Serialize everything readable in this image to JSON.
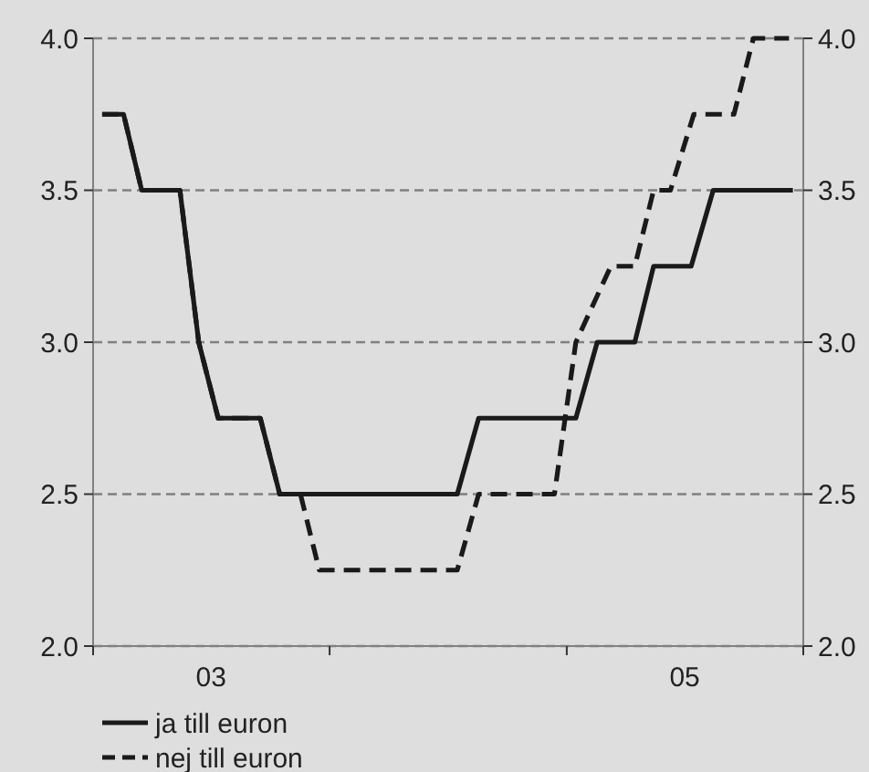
{
  "chart_data": {
    "type": "line",
    "xlim": [
      "2003-01-01",
      "2006-01-01"
    ],
    "xticks": [
      {
        "value": "2003-01-01",
        "label": null
      },
      {
        "value": "2003-07-02",
        "label": "03"
      },
      {
        "value": "2004-01-01",
        "label": null
      },
      {
        "value": "2005-01-01",
        "label": null
      },
      {
        "value": "2005-07-02",
        "label": "05"
      },
      {
        "value": "2006-01-01",
        "label": null
      }
    ],
    "ylim": [
      2.0,
      4.0
    ],
    "yticks": [
      {
        "value": 2.0,
        "label": "2.0"
      },
      {
        "value": 2.5,
        "label": "2.5"
      },
      {
        "value": 3.0,
        "label": "3.0"
      },
      {
        "value": 3.5,
        "label": "3.5"
      },
      {
        "value": 4.0,
        "label": "4.0"
      }
    ],
    "y2lim": [
      2.0,
      4.0
    ],
    "y2ticks": [
      {
        "value": 2.0,
        "label": "2.0"
      },
      {
        "value": 2.5,
        "label": "2.5"
      },
      {
        "value": 3.0,
        "label": "3.0"
      },
      {
        "value": 3.5,
        "label": "3.5"
      },
      {
        "value": 4.0,
        "label": "4.0"
      }
    ],
    "grid": "y",
    "legend": "bottom left",
    "marker": "none",
    "series": [
      {
        "name": "ja till euron",
        "color": "#1a1a1a",
        "line_style": "solid",
        "x": [
          "2003-01-15",
          "2003-02-17",
          "2003-03-17",
          "2003-05-15",
          "2003-06-13",
          "2003-07-13",
          "2003-09-16",
          "2003-10-16",
          "2004-07-16",
          "2004-08-18",
          "2005-01-15",
          "2005-02-17",
          "2005-04-16",
          "2005-05-15",
          "2005-07-12",
          "2005-08-15",
          "2005-12-16"
        ],
        "values": [
          3.75,
          3.75,
          3.5,
          3.5,
          3.0,
          2.75,
          2.75,
          2.5,
          2.5,
          2.75,
          2.75,
          3.0,
          3.0,
          3.25,
          3.25,
          3.5,
          3.5
        ]
      },
      {
        "name": "nej till euron",
        "color": "#1a1a1a",
        "line_style": "dashed",
        "x": [
          "2003-01-15",
          "2003-02-17",
          "2003-03-17",
          "2003-05-15",
          "2003-06-13",
          "2003-07-13",
          "2003-09-16",
          "2003-10-16",
          "2003-11-17",
          "2003-12-16",
          "2004-07-16",
          "2004-08-18",
          "2004-12-13",
          "2005-01-15",
          "2005-03-10",
          "2005-04-16",
          "2005-05-15",
          "2005-06-10",
          "2005-07-16",
          "2005-09-16",
          "2005-10-16",
          "2005-12-10"
        ],
        "values": [
          3.75,
          3.75,
          3.5,
          3.5,
          3.0,
          2.75,
          2.75,
          2.5,
          2.5,
          2.25,
          2.25,
          2.5,
          2.5,
          3.0,
          3.25,
          3.25,
          3.5,
          3.5,
          3.75,
          3.75,
          4.0,
          4.0
        ]
      }
    ]
  }
}
